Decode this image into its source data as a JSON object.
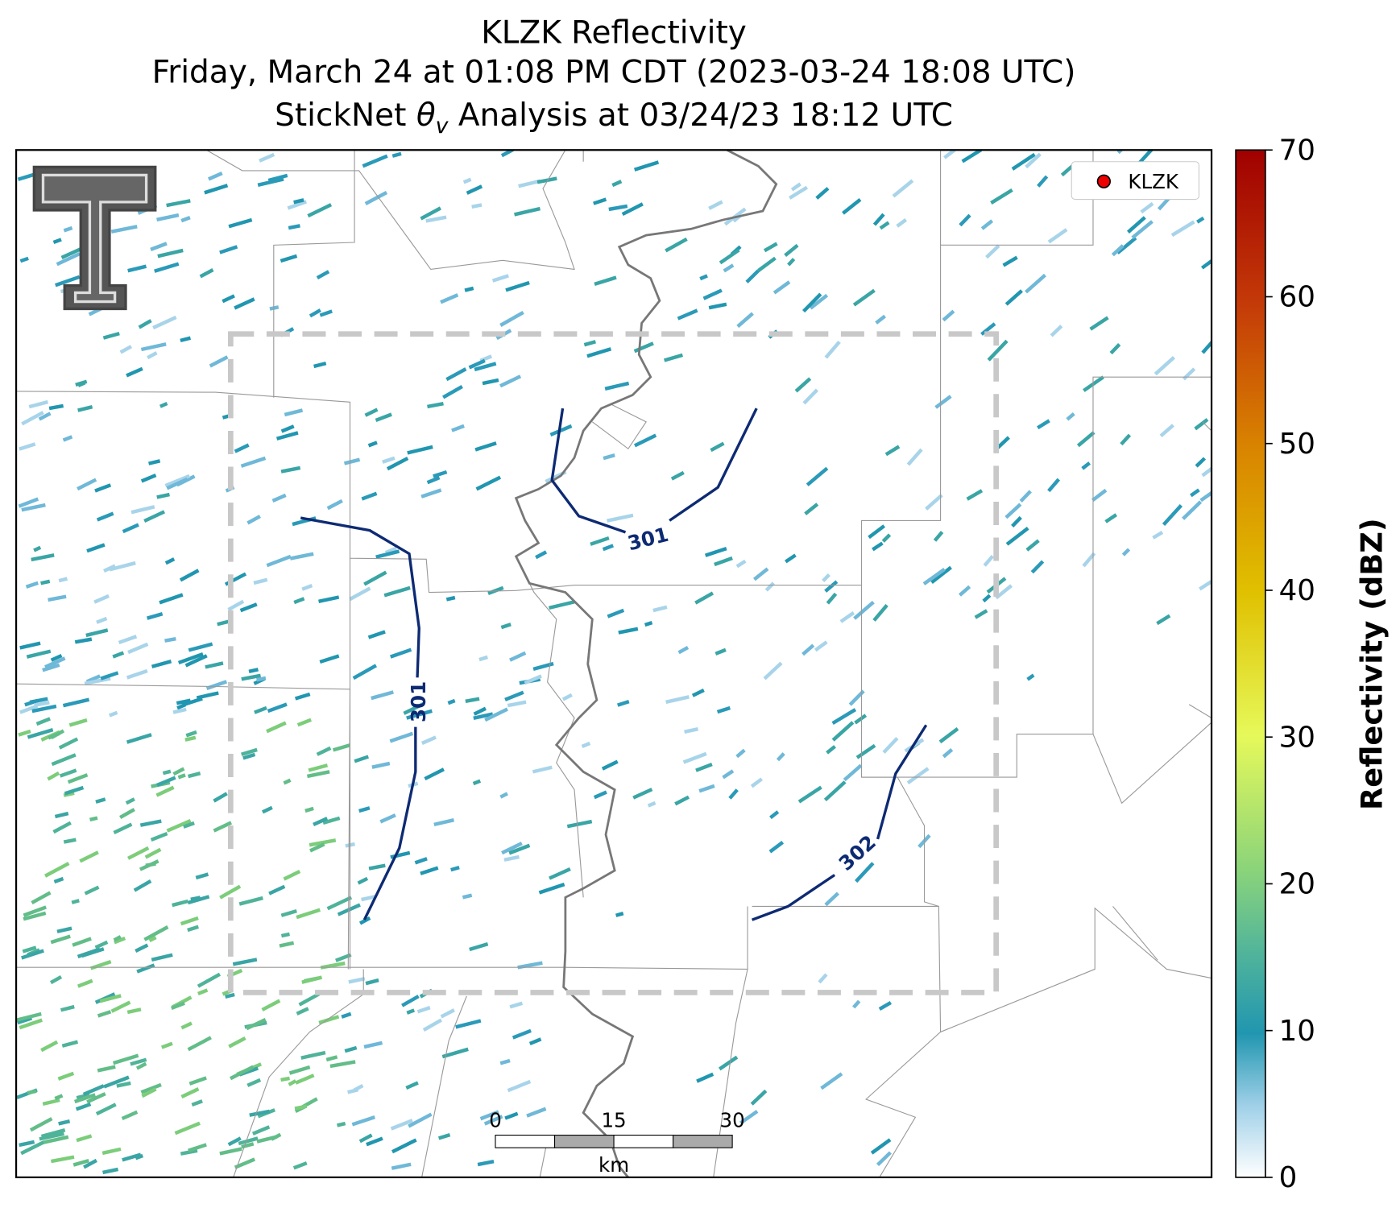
{
  "title": {
    "line1": "KLZK Reflectivity",
    "line2": "Friday, March 24 at 01:08 PM CDT (2023-03-24 18:08 UTC)",
    "line3_start": "StickNet ",
    "line3_symbol": "θ",
    "line3_subscript": "v",
    "line3_end": " Analysis at 03/24/23 18:12 UTC"
  },
  "legend": {
    "label": "KLZK"
  },
  "colorbar": {
    "label": "Reflectivity (dBZ)",
    "lim": [
      0,
      70
    ],
    "ticks": [
      0,
      10,
      20,
      30,
      40,
      50,
      60,
      70
    ]
  },
  "contours": [
    {
      "label": 301
    },
    {
      "label": 301
    },
    {
      "label": 302
    }
  ],
  "scale_bar": {
    "lim": [
      0,
      30
    ],
    "ticks": [
      0,
      15,
      30
    ],
    "unit": "km"
  }
}
